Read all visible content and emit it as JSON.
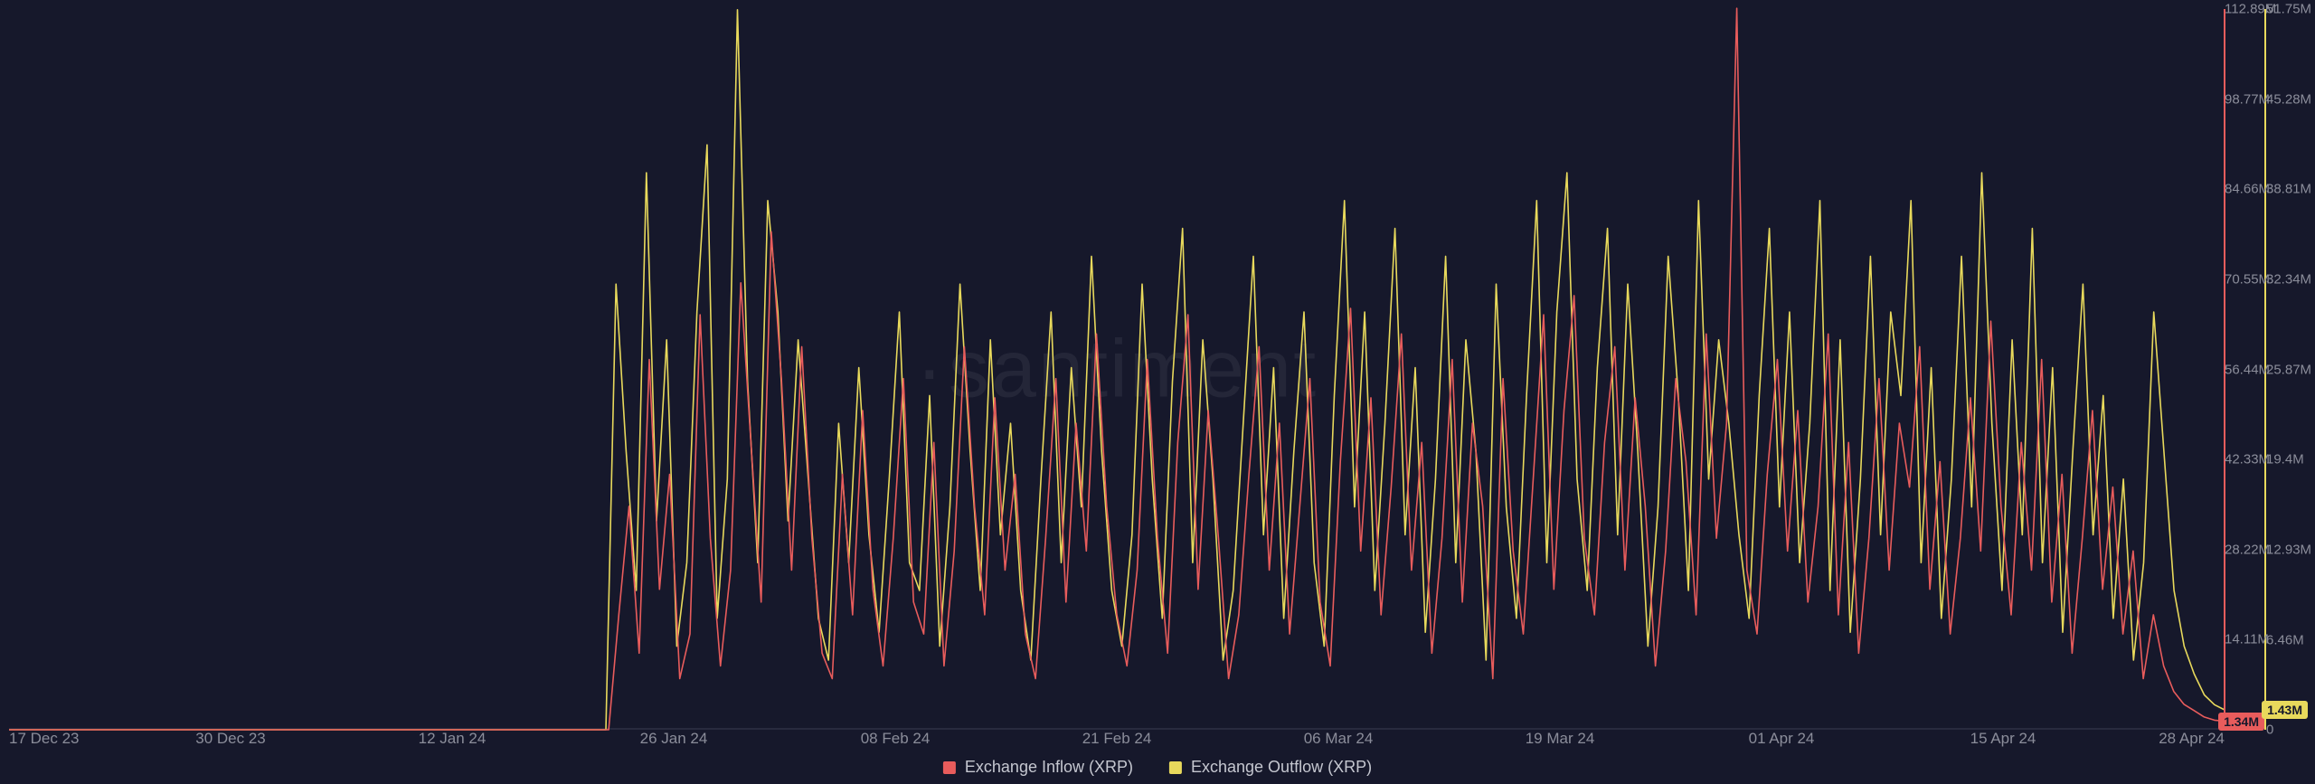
{
  "watermark": "santiment",
  "chart": {
    "type": "line",
    "background_color": "#16182b",
    "text_color": "#8b8d9a",
    "legend_text_color": "#c5c7d0",
    "x_axis": {
      "ticks": [
        "17 Dec 23",
        "30 Dec 23",
        "12 Jan 24",
        "26 Jan 24",
        "08 Feb 24",
        "21 Feb 24",
        "06 Mar 24",
        "19 Mar 24",
        "01 Apr 24",
        "15 Apr 24",
        "28 Apr 24"
      ],
      "tick_fontsize": 17
    },
    "y_axis_left": {
      "ticks": [
        "112.89M",
        "98.77M",
        "84.66M",
        "70.55M",
        "56.44M",
        "42.33M",
        "28.22M",
        "14.11M"
      ],
      "max": 112.89,
      "min": 0,
      "color": "#e85c5c",
      "tick_fontsize": 15
    },
    "y_axis_right": {
      "ticks": [
        "51.75M",
        "45.28M",
        "38.81M",
        "32.34M",
        "25.87M",
        "19.4M",
        "12.93M",
        "6.46M",
        "0"
      ],
      "max": 51.75,
      "min": 0,
      "color": "#e8d95c",
      "tick_fontsize": 15
    },
    "badges": {
      "left": {
        "label": "1.34M",
        "value": 1.34,
        "bg": "#e85c5c"
      },
      "right": {
        "label": "1.43M",
        "value": 1.43,
        "bg": "#e8d95c"
      }
    },
    "series": [
      {
        "name": "Exchange Inflow (XRP)",
        "color": "#e85c5c",
        "stroke_width": 1.6,
        "axis": "left",
        "baseline_until_index": 59,
        "data": [
          0,
          0,
          0,
          0,
          0,
          0,
          0,
          0,
          0,
          0,
          0,
          0,
          0,
          0,
          0,
          0,
          0,
          0,
          0,
          0,
          0,
          0,
          0,
          0,
          0,
          0,
          0,
          0,
          0,
          0,
          0,
          0,
          0,
          0,
          0,
          0,
          0,
          0,
          0,
          0,
          0,
          0,
          0,
          0,
          0,
          0,
          0,
          0,
          0,
          0,
          0,
          0,
          0,
          0,
          0,
          0,
          0,
          0,
          0,
          0,
          18,
          35,
          12,
          58,
          22,
          40,
          8,
          15,
          65,
          30,
          10,
          25,
          70,
          45,
          20,
          78,
          55,
          25,
          60,
          30,
          12,
          8,
          40,
          18,
          50,
          22,
          10,
          30,
          55,
          20,
          15,
          45,
          10,
          28,
          60,
          35,
          18,
          52,
          25,
          40,
          15,
          8,
          30,
          55,
          20,
          48,
          28,
          62,
          35,
          18,
          10,
          25,
          58,
          30,
          12,
          45,
          65,
          22,
          50,
          30,
          8,
          18,
          40,
          60,
          25,
          48,
          15,
          35,
          55,
          20,
          10,
          42,
          66,
          28,
          52,
          18,
          38,
          62,
          25,
          45,
          12,
          30,
          58,
          20,
          48,
          35,
          8,
          55,
          28,
          15,
          40,
          65,
          22,
          50,
          68,
          30,
          18,
          45,
          60,
          25,
          52,
          35,
          10,
          28,
          55,
          42,
          18,
          62,
          30,
          48,
          113,
          25,
          15,
          40,
          58,
          28,
          50,
          20,
          35,
          62,
          18,
          45,
          12,
          30,
          55,
          25,
          48,
          38,
          60,
          22,
          42,
          15,
          30,
          52,
          28,
          64,
          35,
          18,
          45,
          25,
          58,
          20,
          40,
          12,
          30,
          50,
          22,
          38,
          15,
          28,
          8,
          18,
          10,
          6,
          4,
          3,
          2,
          1.5,
          1.34
        ]
      },
      {
        "name": "Exchange Outflow (XRP)",
        "color": "#e8d95c",
        "stroke_width": 1.6,
        "axis": "right",
        "baseline_until_index": 59,
        "data": [
          0,
          0,
          0,
          0,
          0,
          0,
          0,
          0,
          0,
          0,
          0,
          0,
          0,
          0,
          0,
          0,
          0,
          0,
          0,
          0,
          0,
          0,
          0,
          0,
          0,
          0,
          0,
          0,
          0,
          0,
          0,
          0,
          0,
          0,
          0,
          0,
          0,
          0,
          0,
          0,
          0,
          0,
          0,
          0,
          0,
          0,
          0,
          0,
          0,
          0,
          0,
          0,
          0,
          0,
          0,
          0,
          0,
          0,
          0,
          0,
          32,
          20,
          10,
          40,
          15,
          28,
          6,
          12,
          30,
          42,
          8,
          18,
          51.7,
          25,
          12,
          38,
          30,
          15,
          28,
          18,
          8,
          5,
          22,
          12,
          26,
          14,
          7,
          18,
          30,
          12,
          10,
          24,
          6,
          16,
          32,
          20,
          10,
          28,
          14,
          22,
          10,
          5,
          18,
          30,
          12,
          26,
          16,
          34,
          20,
          10,
          6,
          14,
          32,
          18,
          8,
          25,
          36,
          12,
          28,
          18,
          5,
          10,
          22,
          34,
          14,
          26,
          8,
          20,
          30,
          12,
          6,
          24,
          38,
          16,
          30,
          10,
          22,
          36,
          14,
          26,
          7,
          18,
          34,
          12,
          28,
          20,
          5,
          32,
          16,
          8,
          24,
          38,
          12,
          30,
          40,
          18,
          10,
          26,
          36,
          14,
          32,
          20,
          6,
          16,
          34,
          24,
          10,
          38,
          18,
          28,
          22,
          14,
          8,
          24,
          36,
          16,
          30,
          12,
          22,
          38,
          10,
          28,
          7,
          18,
          34,
          14,
          30,
          24,
          38,
          12,
          26,
          8,
          18,
          34,
          16,
          40,
          22,
          10,
          28,
          14,
          36,
          12,
          26,
          7,
          20,
          32,
          14,
          24,
          8,
          18,
          5,
          12,
          30,
          20,
          10,
          6,
          4,
          2.5,
          1.8,
          1.43
        ]
      }
    ],
    "legend": [
      {
        "label": "Exchange Inflow (XRP)",
        "color": "#e85c5c"
      },
      {
        "label": "Exchange Outflow (XRP)",
        "color": "#e8d95c"
      }
    ]
  }
}
